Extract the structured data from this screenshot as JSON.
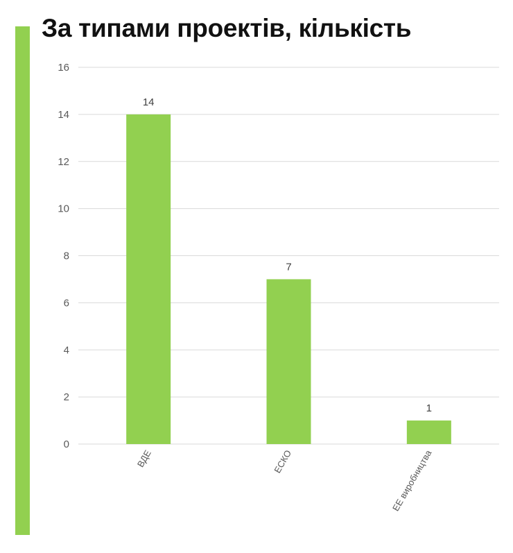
{
  "chart_data": {
    "type": "bar",
    "title": "За типами проектів, кількість",
    "categories": [
      "ВДЕ",
      "ЕСКО",
      "ЕЕ виробництва"
    ],
    "values": [
      14,
      7,
      1
    ],
    "ylim": [
      0,
      16
    ],
    "yticks": [
      0,
      2,
      4,
      6,
      8,
      10,
      12,
      14,
      16
    ],
    "xlabel": "",
    "ylabel": "",
    "grid": true,
    "data_labels": true,
    "legend": "none"
  },
  "colors": {
    "bar": "#92d050",
    "accent": "#92d050",
    "grid": "#d9d9d9"
  }
}
